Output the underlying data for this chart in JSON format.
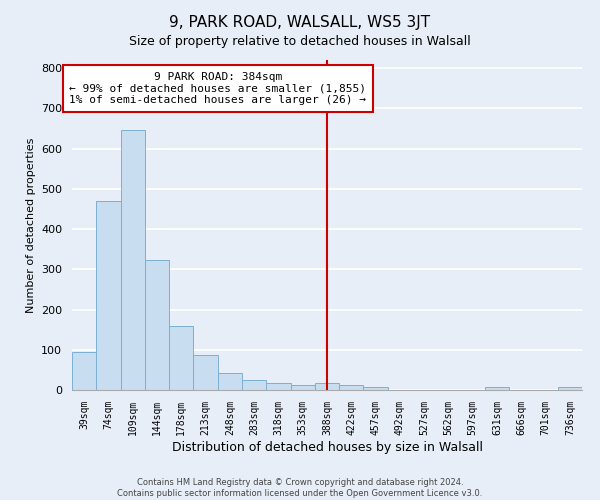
{
  "title": "9, PARK ROAD, WALSALL, WS5 3JT",
  "subtitle": "Size of property relative to detached houses in Walsall",
  "xlabel": "Distribution of detached houses by size in Walsall",
  "ylabel": "Number of detached properties",
  "bin_labels": [
    "39sqm",
    "74sqm",
    "109sqm",
    "144sqm",
    "178sqm",
    "213sqm",
    "248sqm",
    "283sqm",
    "318sqm",
    "353sqm",
    "388sqm",
    "422sqm",
    "457sqm",
    "492sqm",
    "527sqm",
    "562sqm",
    "597sqm",
    "631sqm",
    "666sqm",
    "701sqm",
    "736sqm"
  ],
  "bar_values": [
    95,
    470,
    645,
    323,
    158,
    88,
    43,
    25,
    18,
    13,
    18,
    13,
    8,
    0,
    0,
    0,
    0,
    7,
    0,
    0,
    7
  ],
  "bar_color": "#c9ddf0",
  "bar_edge_color": "#7ab0d4",
  "vline_x_idx": 10,
  "vline_color": "#cc0000",
  "annotation_title": "9 PARK ROAD: 384sqm",
  "annotation_line1": "← 99% of detached houses are smaller (1,855)",
  "annotation_line2": "1% of semi-detached houses are larger (26) →",
  "annotation_box_edge": "#cc0000",
  "ylim": [
    0,
    820
  ],
  "yticks": [
    0,
    100,
    200,
    300,
    400,
    500,
    600,
    700,
    800
  ],
  "footnote1": "Contains HM Land Registry data © Crown copyright and database right 2024.",
  "footnote2": "Contains public sector information licensed under the Open Government Licence v3.0.",
  "bg_color": "#e8eef8"
}
